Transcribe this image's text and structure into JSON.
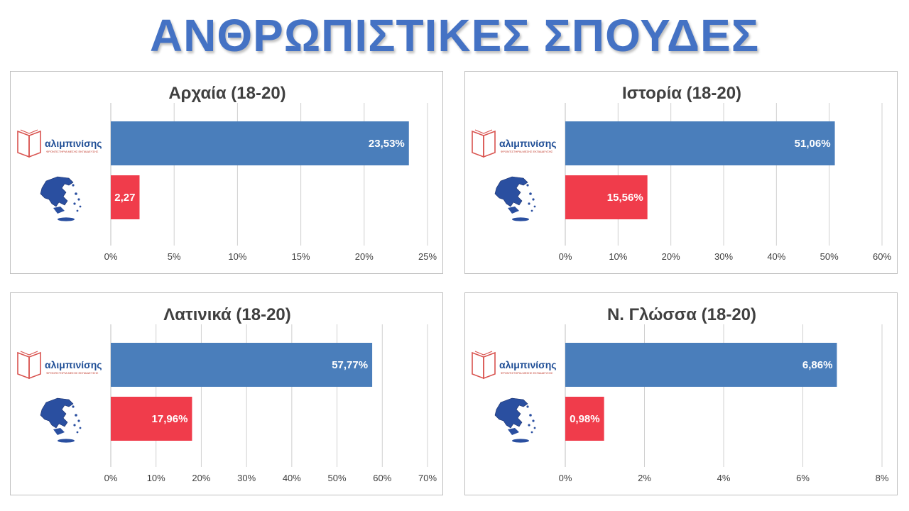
{
  "page": {
    "title": "ΑΝΘΡΩΠΙΣΤΙΚΕΣ ΣΠΟΥΔΕΣ"
  },
  "logo": {
    "name": "αλιμπινίσης",
    "tagline": "ΦΡΟΝΤΙΣΤΗΡΙΑ ΜΕΣΗΣ ΕΚΠΑΙΔΕΥΣΗΣ"
  },
  "colors": {
    "school": "#4a7ebb",
    "national": "#f03c4b",
    "title": "#4472c4"
  },
  "chart_data": [
    {
      "type": "bar",
      "title": "Αρχαία (18-20)",
      "categories": [
        "αλιμπινίσης",
        "Ελλάδα"
      ],
      "values": [
        23.53,
        2.27
      ],
      "value_labels": [
        "23,53%",
        "2,27"
      ],
      "xlim": [
        0,
        25
      ],
      "ticks": [
        0,
        5,
        10,
        15,
        20,
        25
      ],
      "tick_labels": [
        "0%",
        "5%",
        "10%",
        "15%",
        "20%",
        "25%"
      ],
      "grid": true
    },
    {
      "type": "bar",
      "title": "Ιστορία (18-20)",
      "categories": [
        "αλιμπινίσης",
        "Ελλάδα"
      ],
      "values": [
        51.06,
        15.56
      ],
      "value_labels": [
        "51,06%",
        "15,56%"
      ],
      "xlim": [
        0,
        60
      ],
      "ticks": [
        0,
        10,
        20,
        30,
        40,
        50,
        60
      ],
      "tick_labels": [
        "0%",
        "10%",
        "20%",
        "30%",
        "40%",
        "50%",
        "60%"
      ],
      "grid": true
    },
    {
      "type": "bar",
      "title": "Λατινικά (18-20)",
      "categories": [
        "αλιμπινίσης",
        "Ελλάδα"
      ],
      "values": [
        57.77,
        17.96
      ],
      "value_labels": [
        "57,77%",
        "17,96%"
      ],
      "xlim": [
        0,
        70
      ],
      "ticks": [
        0,
        10,
        20,
        30,
        40,
        50,
        60,
        70
      ],
      "tick_labels": [
        "0%",
        "10%",
        "20%",
        "30%",
        "40%",
        "50%",
        "60%",
        "70%"
      ],
      "grid": true
    },
    {
      "type": "bar",
      "title": "Ν. Γλώσσα (18-20)",
      "categories": [
        "αλιμπινίσης",
        "Ελλάδα"
      ],
      "values": [
        6.86,
        0.98
      ],
      "value_labels": [
        "6,86%",
        "0,98%"
      ],
      "xlim": [
        0,
        8
      ],
      "ticks": [
        0,
        2,
        4,
        6,
        8
      ],
      "tick_labels": [
        "0%",
        "2%",
        "4%",
        "6%",
        "8%"
      ],
      "grid": true
    }
  ]
}
